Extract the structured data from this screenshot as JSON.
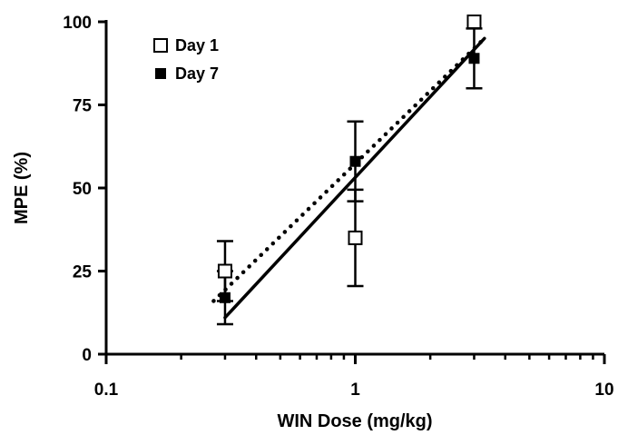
{
  "chart_data": {
    "type": "scatter",
    "xlabel": "WIN Dose (mg/kg)",
    "ylabel": "MPE (%)",
    "x_scale": "log",
    "xlim": [
      0.1,
      10
    ],
    "ylim": [
      0,
      100
    ],
    "x_ticks": [
      "0.1",
      "1",
      "10"
    ],
    "y_ticks": [
      "0",
      "25",
      "50",
      "75",
      "100"
    ],
    "legend_position": "top-left",
    "series": [
      {
        "name": "Day 1",
        "marker": "open-square",
        "color": "#000000",
        "x": [
          0.3,
          1,
          3
        ],
        "y": [
          25,
          35,
          100
        ],
        "error": [
          9,
          14.5,
          0
        ],
        "fit_line": {
          "style": "solid",
          "x": [
            0.3,
            3.3
          ],
          "y": [
            11,
            95
          ]
        }
      },
      {
        "name": "Day 7",
        "marker": "filled-square",
        "color": "#000000",
        "x": [
          0.3,
          1,
          3
        ],
        "y": [
          17,
          58,
          89
        ],
        "error": [
          8,
          12,
          9
        ],
        "fit_line": {
          "style": "dotted",
          "x": [
            0.27,
            3.3
          ],
          "y": [
            16,
            95
          ]
        }
      }
    ]
  }
}
